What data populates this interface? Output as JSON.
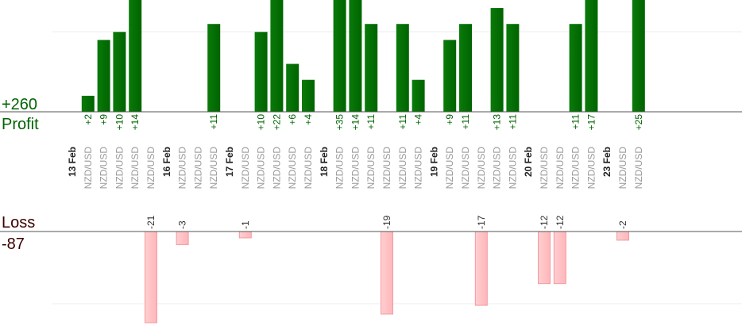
{
  "summary": {
    "profit_total": "+260",
    "profit_label": "Profit",
    "loss_label": "Loss",
    "loss_total": "-87"
  },
  "colors": {
    "profit_bar": "#006400",
    "profit_text": "#006400",
    "loss_bar": "#ffb6b9",
    "loss_text": "#333333",
    "axis": "#555555",
    "grid": "#eeeeee",
    "pair_text": "#999999",
    "date_text": "#222222",
    "summary_profit": "#006400",
    "summary_loss": "#3a0000"
  },
  "chart_data": {
    "type": "bar",
    "profit_ylim": [
      0,
      14
    ],
    "loss_ylim": [
      0,
      21
    ],
    "slots": [
      {
        "kind": "date",
        "label": "13 Feb"
      },
      {
        "kind": "trade",
        "pair": "NZD/USD",
        "value": 2
      },
      {
        "kind": "trade",
        "pair": "NZD/USD",
        "value": 9
      },
      {
        "kind": "trade",
        "pair": "NZD/USD",
        "value": 10
      },
      {
        "kind": "trade",
        "pair": "NZD/USD",
        "value": 14
      },
      {
        "kind": "trade",
        "pair": "NZD/USD",
        "value": -21
      },
      {
        "kind": "date",
        "label": "16 Feb"
      },
      {
        "kind": "trade",
        "pair": "NZD/USD",
        "value": -3
      },
      {
        "kind": "trade",
        "pair": "NZD/USD",
        "value": null
      },
      {
        "kind": "trade",
        "pair": "NZD/USD",
        "value": 11
      },
      {
        "kind": "date",
        "label": "17 Feb"
      },
      {
        "kind": "trade",
        "pair": "NZD/USD",
        "value": -1
      },
      {
        "kind": "trade",
        "pair": "NZD/USD",
        "value": 10
      },
      {
        "kind": "trade",
        "pair": "NZD/USD",
        "value": 22
      },
      {
        "kind": "trade",
        "pair": "NZD/USD",
        "value": 6
      },
      {
        "kind": "trade",
        "pair": "NZD/USD",
        "value": 4
      },
      {
        "kind": "date",
        "label": "18 Feb"
      },
      {
        "kind": "trade",
        "pair": "NZD/USD",
        "value": 35
      },
      {
        "kind": "trade",
        "pair": "NZD/USD",
        "value": 14
      },
      {
        "kind": "trade",
        "pair": "NZD/USD",
        "value": 11
      },
      {
        "kind": "trade",
        "pair": "NZD/USD",
        "value": -19
      },
      {
        "kind": "trade",
        "pair": "NZD/USD",
        "value": 11
      },
      {
        "kind": "trade",
        "pair": "NZD/USD",
        "value": 4
      },
      {
        "kind": "date",
        "label": "19 Feb"
      },
      {
        "kind": "trade",
        "pair": "NZD/USD",
        "value": 9
      },
      {
        "kind": "trade",
        "pair": "NZD/USD",
        "value": 11
      },
      {
        "kind": "trade",
        "pair": "NZD/USD",
        "value": -17
      },
      {
        "kind": "trade",
        "pair": "NZD/USD",
        "value": 13
      },
      {
        "kind": "trade",
        "pair": "NZD/USD",
        "value": 11
      },
      {
        "kind": "date",
        "label": "20 Feb"
      },
      {
        "kind": "trade",
        "pair": "NZD/USD",
        "value": -12
      },
      {
        "kind": "trade",
        "pair": "NZD/USD",
        "value": -12
      },
      {
        "kind": "trade",
        "pair": "NZD/USD",
        "value": 11
      },
      {
        "kind": "trade",
        "pair": "NZD/USD",
        "value": 17
      },
      {
        "kind": "date",
        "label": "23 Feb"
      },
      {
        "kind": "trade",
        "pair": "NZD/USD",
        "value": -2
      },
      {
        "kind": "trade",
        "pair": "NZD/USD",
        "value": 25
      }
    ]
  }
}
